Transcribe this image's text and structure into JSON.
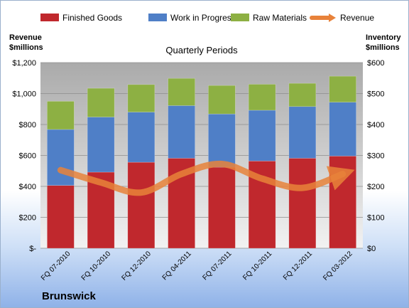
{
  "company": "Brunswick",
  "chart_data": {
    "type": "bar",
    "stacked": true,
    "title": "Quarterly Periods",
    "ylabel_left": "Revenue\n$millions",
    "ylabel_right": "Inventory\n$millions",
    "ylim_left": [
      0,
      1200
    ],
    "ylim_right": [
      0,
      600
    ],
    "yticks_left": [
      "$-",
      "$200",
      "$400",
      "$600",
      "$800",
      "$1,000",
      "$1,200"
    ],
    "yticks_right": [
      "$0",
      "$100",
      "$200",
      "$300",
      "$400",
      "$500",
      "$600"
    ],
    "grid": true,
    "legend_position": "top",
    "categories": [
      "FQ 07-2010",
      "FQ 10-2010",
      "FQ 12-2010",
      "FQ 04-2011",
      "FQ 07-2011",
      "FQ 10-2011",
      "FQ 12-2011",
      "FQ 03-2012"
    ],
    "series": [
      {
        "name": "Finished Goods",
        "axis": "right",
        "color": "#c0282d",
        "values": [
          203,
          246,
          278,
          291,
          262,
          282,
          291,
          298
        ]
      },
      {
        "name": "Work in Progress",
        "axis": "right",
        "color": "#4f7fc7",
        "values": [
          181,
          178,
          162,
          170,
          172,
          164,
          167,
          174
        ]
      },
      {
        "name": "Raw Materials",
        "axis": "right",
        "color": "#8db043",
        "values": [
          91,
          93,
          89,
          88,
          92,
          84,
          75,
          84
        ]
      },
      {
        "name": "Revenue",
        "type": "line",
        "axis": "left",
        "color": "#e8823a",
        "values": [
          505,
          425,
          360,
          480,
          545,
          450,
          390,
          480
        ]
      }
    ]
  }
}
